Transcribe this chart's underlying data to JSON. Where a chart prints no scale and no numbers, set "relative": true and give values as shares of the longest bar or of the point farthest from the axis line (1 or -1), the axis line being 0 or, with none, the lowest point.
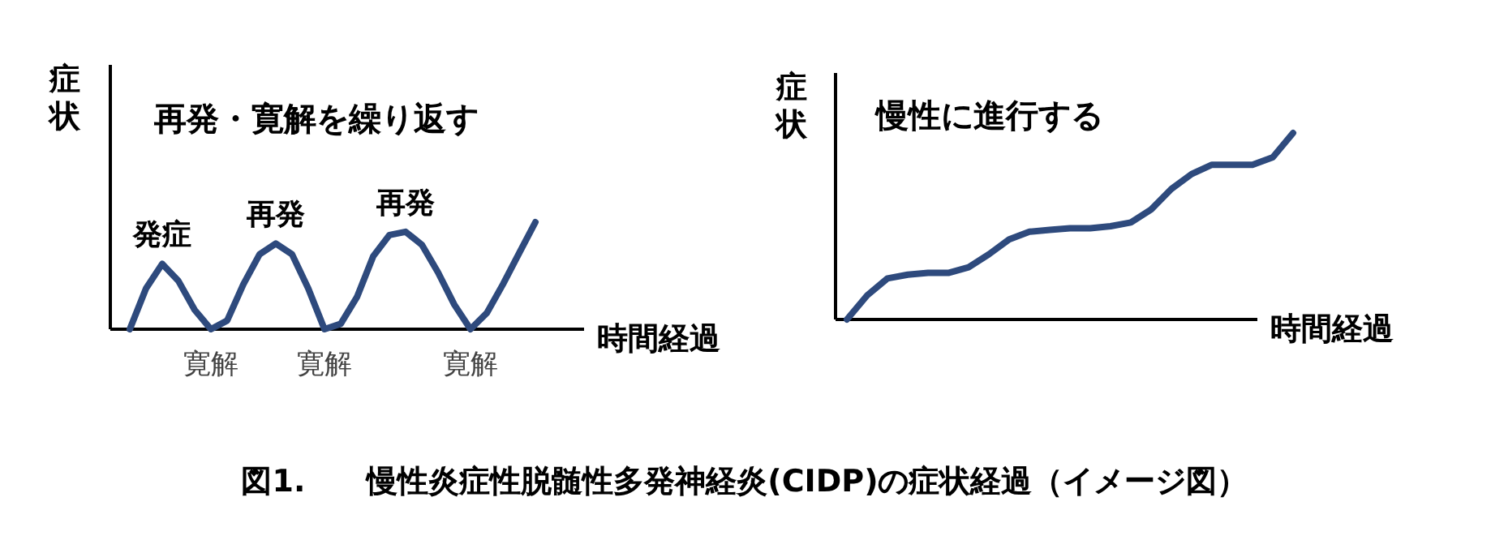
{
  "chart_data": [
    {
      "type": "line",
      "title": "再発・寛解を繰り返す",
      "ylabel": "症状",
      "xlabel": "時間経過",
      "relative": true,
      "categories": [
        null,
        null,
        null,
        null,
        null,
        null,
        null,
        null,
        null,
        null,
        null,
        null,
        null,
        null,
        null,
        null,
        null,
        null,
        null,
        null,
        null,
        null,
        null,
        null,
        null,
        null
      ],
      "series": [
        {
          "color": "#2e4a7d",
          "values": [
            0,
            0.38,
            0.61,
            0.45,
            0.18,
            0,
            0.08,
            0.42,
            0.7,
            0.8,
            0.7,
            0.38,
            0,
            0.05,
            0.3,
            0.68,
            0.88,
            0.91,
            0.79,
            0.53,
            0.23,
            0,
            0.15,
            0.42,
            0.71,
            1
          ]
        }
      ],
      "annotations": [
        {
          "text": "発症",
          "y": 0.61
        },
        {
          "text": "再発",
          "y": 0.8
        },
        {
          "text": "再発",
          "y": 0.91
        },
        {
          "text": "寛解",
          "y": 0
        },
        {
          "text": "寛解",
          "y": 0
        },
        {
          "text": "寛解",
          "y": 0
        }
      ]
    },
    {
      "type": "line",
      "title": "慢性に進行する",
      "ylabel": "症状",
      "xlabel": "時間経過",
      "relative": true,
      "categories": [
        null,
        null,
        null,
        null,
        null,
        null,
        null,
        null,
        null,
        null,
        null,
        null,
        null,
        null,
        null,
        null,
        null,
        null,
        null,
        null,
        null,
        null,
        null
      ],
      "series": [
        {
          "color": "#2e4a7d",
          "values": [
            0,
            0.13,
            0.22,
            0.24,
            0.25,
            0.25,
            0.28,
            0.35,
            0.43,
            0.47,
            0.48,
            0.49,
            0.49,
            0.5,
            0.52,
            0.59,
            0.7,
            0.78,
            0.83,
            0.83,
            0.83,
            0.87,
            1
          ]
        }
      ]
    },
    {
      "type": "other",
      "title": "図1.　　慢性炎症性脱髄性多発神経炎(CIDP)の症状経過（イメージ図）"
    }
  ]
}
